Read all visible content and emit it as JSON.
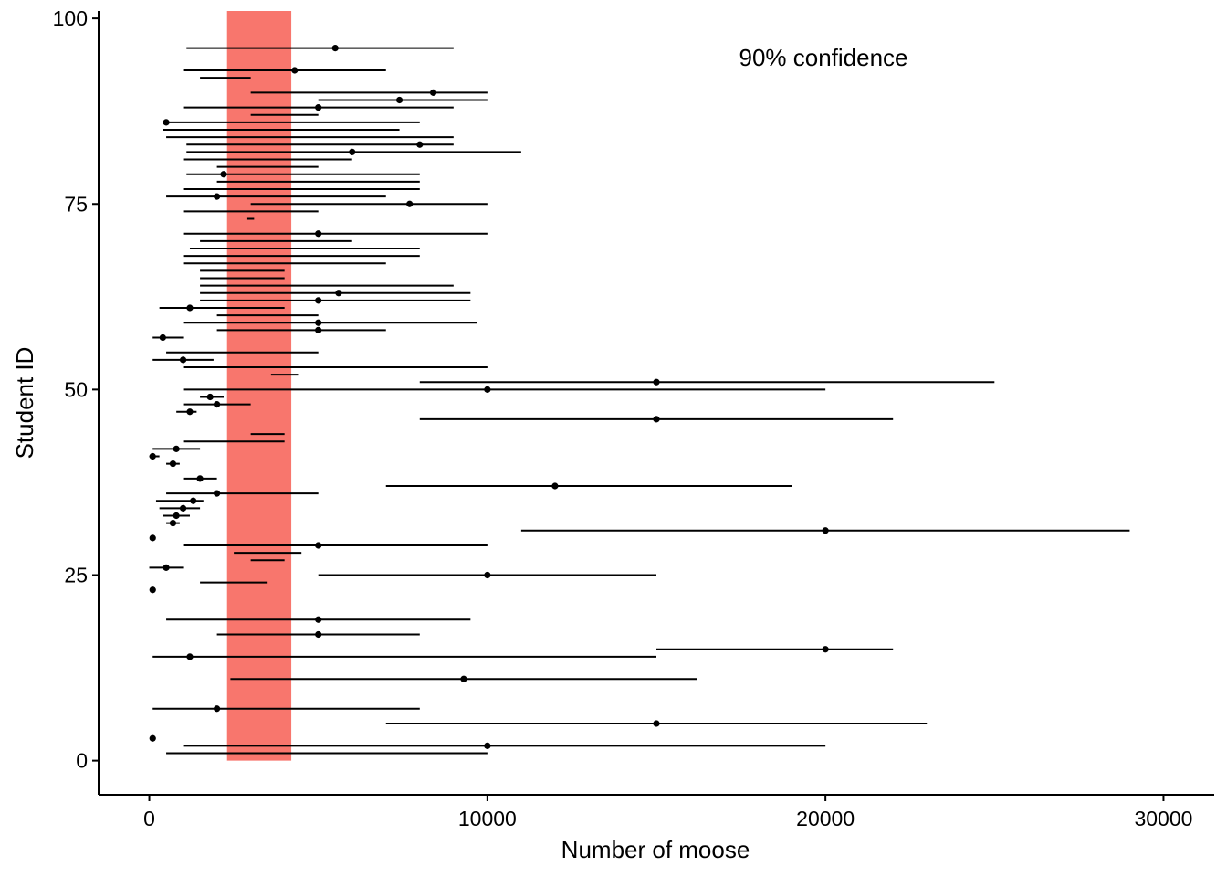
{
  "chart_data": {
    "type": "scatter",
    "title": "",
    "xlabel": "Number of moose",
    "ylabel": "Student ID",
    "xlim": [
      -1500,
      31500
    ],
    "ylim": [
      -4.6,
      101
    ],
    "x_ticks": [
      0,
      10000,
      20000,
      30000
    ],
    "x_tick_labels": [
      "0",
      "10000",
      "20000",
      "30000"
    ],
    "y_ticks": [
      0,
      25,
      50,
      75,
      100
    ],
    "y_tick_labels": [
      "0",
      "25",
      "50",
      "75",
      "100"
    ],
    "grid": false,
    "legend": "none",
    "annotation": "90% confidence",
    "band": {
      "xmin": 2300,
      "xmax": 4200,
      "ymin": 0,
      "ymax": 101,
      "color": "#F8766D"
    },
    "point_color": "#000000",
    "intervals": [
      {
        "y": 1,
        "lo": 500,
        "hi": 10000
      },
      {
        "y": 2,
        "lo": 1000,
        "hi": 20000,
        "est": 10000
      },
      {
        "y": 3,
        "est": 100
      },
      {
        "y": 5,
        "lo": 7000,
        "hi": 23000,
        "est": 15000
      },
      {
        "y": 7,
        "lo": 100,
        "hi": 8000,
        "est": 2000
      },
      {
        "y": 11,
        "lo": 2400,
        "hi": 16200,
        "est": 9300
      },
      {
        "y": 14,
        "lo": 100,
        "hi": 15000,
        "est": 1200
      },
      {
        "y": 15,
        "lo": 15000,
        "hi": 22000,
        "est": 20000
      },
      {
        "y": 17,
        "lo": 2000,
        "hi": 8000,
        "est": 5000
      },
      {
        "y": 19,
        "lo": 500,
        "hi": 9500,
        "est": 5000
      },
      {
        "y": 23,
        "est": 100
      },
      {
        "y": 24,
        "lo": 1500,
        "hi": 3500
      },
      {
        "y": 25,
        "lo": 5000,
        "hi": 15000,
        "est": 10000
      },
      {
        "y": 26,
        "lo": 0,
        "hi": 1000,
        "est": 500
      },
      {
        "y": 27,
        "lo": 3000,
        "hi": 4000
      },
      {
        "y": 28,
        "lo": 2500,
        "hi": 4500
      },
      {
        "y": 29,
        "lo": 1000,
        "hi": 10000,
        "est": 5000
      },
      {
        "y": 30,
        "est": 100
      },
      {
        "y": 31,
        "lo": 11000,
        "hi": 29000,
        "est": 20000
      },
      {
        "y": 32,
        "lo": 500,
        "hi": 900,
        "est": 700
      },
      {
        "y": 33,
        "lo": 400,
        "hi": 1200,
        "est": 800
      },
      {
        "y": 34,
        "lo": 300,
        "hi": 1500,
        "est": 1000
      },
      {
        "y": 35,
        "lo": 200,
        "hi": 1600,
        "est": 1300
      },
      {
        "y": 36,
        "lo": 500,
        "hi": 5000,
        "est": 2000
      },
      {
        "y": 37,
        "lo": 7000,
        "hi": 19000,
        "est": 12000
      },
      {
        "y": 38,
        "lo": 1000,
        "hi": 2000,
        "est": 1500
      },
      {
        "y": 40,
        "lo": 500,
        "hi": 900,
        "est": 700
      },
      {
        "y": 41,
        "lo": 0,
        "hi": 300,
        "est": 100
      },
      {
        "y": 42,
        "lo": 100,
        "hi": 1500,
        "est": 800
      },
      {
        "y": 43,
        "lo": 1000,
        "hi": 4000
      },
      {
        "y": 44,
        "lo": 3000,
        "hi": 4000
      },
      {
        "y": 46,
        "lo": 8000,
        "hi": 22000,
        "est": 15000
      },
      {
        "y": 47,
        "lo": 800,
        "hi": 1400,
        "est": 1200
      },
      {
        "y": 48,
        "lo": 1000,
        "hi": 3000,
        "est": 2000
      },
      {
        "y": 49,
        "lo": 1500,
        "hi": 2200,
        "est": 1800
      },
      {
        "y": 50,
        "lo": 1000,
        "hi": 20000,
        "est": 10000
      },
      {
        "y": 51,
        "lo": 8000,
        "hi": 25000,
        "est": 15000
      },
      {
        "y": 52,
        "lo": 3600,
        "hi": 4400
      },
      {
        "y": 53,
        "lo": 1000,
        "hi": 10000
      },
      {
        "y": 54,
        "lo": 100,
        "hi": 1900,
        "est": 1000
      },
      {
        "y": 55,
        "lo": 500,
        "hi": 5000
      },
      {
        "y": 57,
        "lo": 100,
        "hi": 1000,
        "est": 400
      },
      {
        "y": 58,
        "lo": 2000,
        "hi": 7000,
        "est": 5000
      },
      {
        "y": 59,
        "lo": 1000,
        "hi": 9700,
        "est": 5000
      },
      {
        "y": 60,
        "lo": 2000,
        "hi": 5000
      },
      {
        "y": 61,
        "lo": 300,
        "hi": 4000,
        "est": 1200
      },
      {
        "y": 62,
        "lo": 1500,
        "hi": 9500,
        "est": 5000
      },
      {
        "y": 63,
        "lo": 1500,
        "hi": 9500,
        "est": 5600
      },
      {
        "y": 64,
        "lo": 1500,
        "hi": 9000
      },
      {
        "y": 65,
        "lo": 1500,
        "hi": 4000
      },
      {
        "y": 66,
        "lo": 1500,
        "hi": 4000
      },
      {
        "y": 67,
        "lo": 1000,
        "hi": 7000
      },
      {
        "y": 68,
        "lo": 1000,
        "hi": 8000
      },
      {
        "y": 69,
        "lo": 1200,
        "hi": 8000
      },
      {
        "y": 70,
        "lo": 1500,
        "hi": 6000
      },
      {
        "y": 71,
        "lo": 1000,
        "hi": 10000,
        "est": 5000
      },
      {
        "y": 73,
        "lo": 2900,
        "hi": 3100
      },
      {
        "y": 74,
        "lo": 1000,
        "hi": 5000
      },
      {
        "y": 75,
        "lo": 3000,
        "hi": 10000,
        "est": 7700
      },
      {
        "y": 76,
        "lo": 500,
        "hi": 7000,
        "est": 2000
      },
      {
        "y": 77,
        "lo": 1000,
        "hi": 8000
      },
      {
        "y": 78,
        "lo": 2000,
        "hi": 8000
      },
      {
        "y": 79,
        "lo": 1100,
        "hi": 8000,
        "est": 2200
      },
      {
        "y": 80,
        "lo": 2000,
        "hi": 5000
      },
      {
        "y": 81,
        "lo": 1000,
        "hi": 6000
      },
      {
        "y": 82,
        "lo": 1100,
        "hi": 11000,
        "est": 6000
      },
      {
        "y": 83,
        "lo": 1100,
        "hi": 9000,
        "est": 8000
      },
      {
        "y": 84,
        "lo": 500,
        "hi": 9000
      },
      {
        "y": 85,
        "lo": 400,
        "hi": 7400
      },
      {
        "y": 86,
        "lo": 400,
        "hi": 8000,
        "est": 500
      },
      {
        "y": 87,
        "lo": 3000,
        "hi": 5000
      },
      {
        "y": 88,
        "lo": 1000,
        "hi": 9000,
        "est": 5000
      },
      {
        "y": 89,
        "lo": 5000,
        "hi": 10000,
        "est": 7400
      },
      {
        "y": 90,
        "lo": 3000,
        "hi": 10000,
        "est": 8400
      },
      {
        "y": 92,
        "lo": 1500,
        "hi": 3000
      },
      {
        "y": 93,
        "lo": 1000,
        "hi": 7000,
        "est": 4300
      },
      {
        "y": 96,
        "lo": 1100,
        "hi": 9000,
        "est": 5500
      }
    ]
  }
}
